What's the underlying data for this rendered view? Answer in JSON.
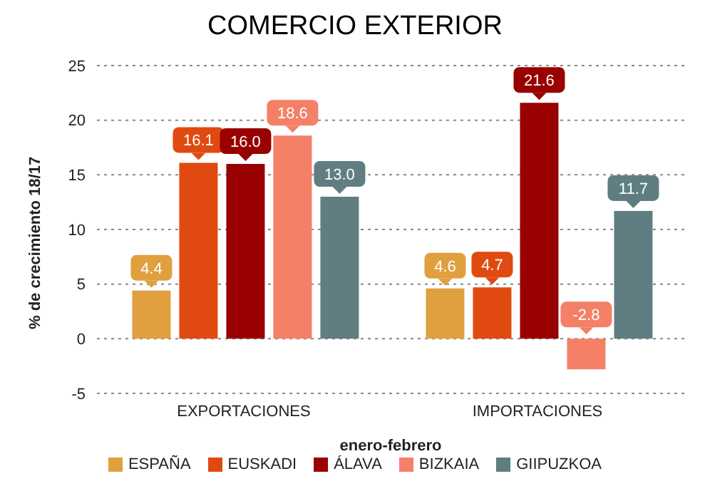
{
  "chart_data": {
    "type": "bar",
    "title": "COMERCIO EXTERIOR",
    "xlabel": "enero-febrero",
    "ylabel": "% de crecimiento 18/17",
    "categories": [
      "EXPORTACIONES",
      "IMPORTACIONES"
    ],
    "series": [
      {
        "name": "ESPAÑA",
        "color": "#e0a040",
        "values": [
          4.4,
          4.6
        ],
        "value_labels": [
          "4.4",
          "4.6"
        ]
      },
      {
        "name": "EUSKADI",
        "color": "#e04a10",
        "values": [
          16.1,
          4.7
        ],
        "value_labels": [
          "16.1",
          "4.7"
        ]
      },
      {
        "name": "ÁLAVA",
        "color": "#990000",
        "values": [
          16.0,
          21.6
        ],
        "value_labels": [
          "16.0",
          "21.6"
        ]
      },
      {
        "name": "BIZKAIA",
        "color": "#f58068",
        "values": [
          18.6,
          -2.8
        ],
        "value_labels": [
          "18.6",
          "-2.8"
        ]
      },
      {
        "name": "GIIPUZKOA",
        "color": "#607d82",
        "values": [
          13.0,
          11.7
        ],
        "value_labels": [
          "13.0",
          "11.7"
        ]
      }
    ],
    "ylim": [
      -5,
      25
    ],
    "yticks": [
      -5,
      0,
      5,
      10,
      15,
      20,
      25
    ],
    "grid": "y",
    "legend": "bottom"
  }
}
